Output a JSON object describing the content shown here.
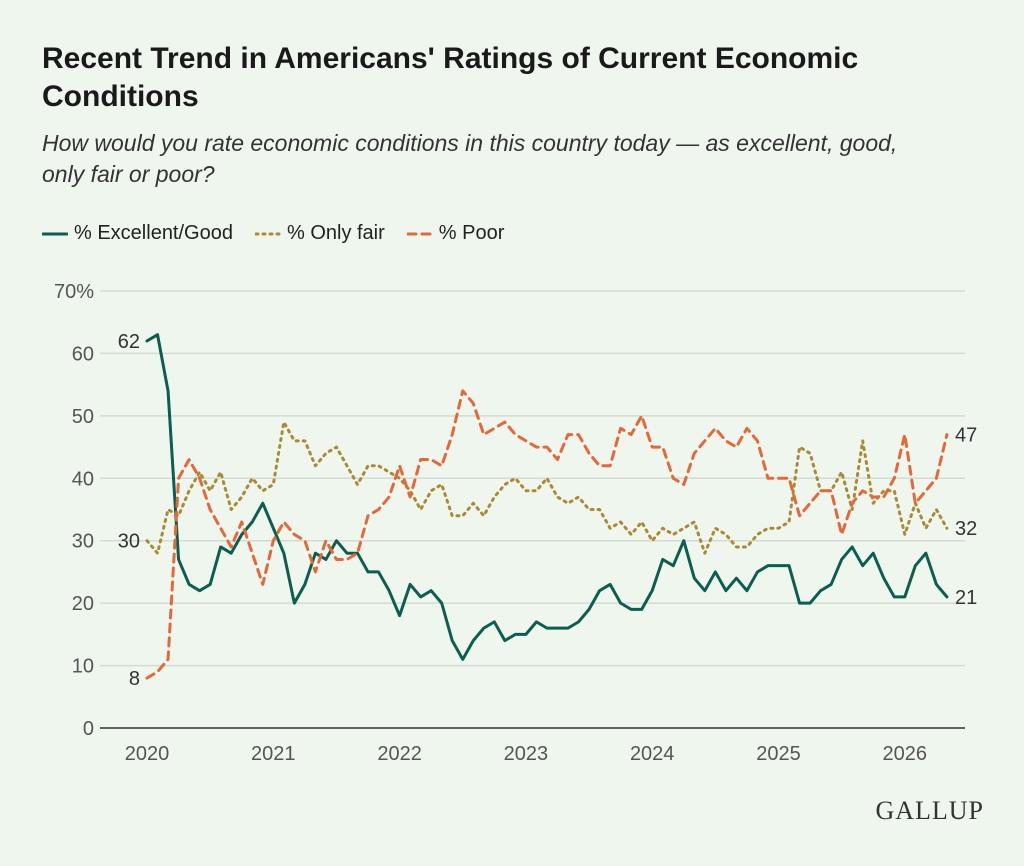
{
  "title": "Recent Trend in Americans' Ratings of Current Economic Conditions",
  "subtitle": "How would you rate economic conditions in this country today — as excellent, good, only fair or poor?",
  "logo": "GALLUP",
  "chart_data": {
    "type": "line",
    "title": "Recent Trend in Americans' Ratings of Current Economic Conditions",
    "xlabel": "",
    "ylabel": "",
    "ylim": [
      0,
      70
    ],
    "yticks": [
      0,
      10,
      20,
      30,
      40,
      50,
      60,
      70
    ],
    "ytick_labels": [
      "0",
      "10",
      "20",
      "30",
      "40",
      "50",
      "60",
      "70%"
    ],
    "xticks": [
      "2020",
      "2021",
      "2022",
      "2023",
      "2024",
      "2025",
      "2026"
    ],
    "grid": "horizontal",
    "legend": "top-left",
    "x": [
      "2020-01",
      "2020-02",
      "2020-03",
      "2020-04",
      "2020-05",
      "2020-06",
      "2020-07",
      "2020-08",
      "2020-09",
      "2020-10",
      "2020-11",
      "2020-12",
      "2021-01",
      "2021-02",
      "2021-03",
      "2021-04",
      "2021-05",
      "2021-06",
      "2021-07",
      "2021-08",
      "2021-09",
      "2021-10",
      "2021-11",
      "2021-12",
      "2022-01",
      "2022-02",
      "2022-03",
      "2022-04",
      "2022-05",
      "2022-06",
      "2022-07",
      "2022-08",
      "2022-09",
      "2022-10",
      "2022-11",
      "2022-12",
      "2023-01",
      "2023-02",
      "2023-03",
      "2023-04",
      "2023-05",
      "2023-06",
      "2023-07",
      "2023-08",
      "2023-09",
      "2023-10",
      "2023-11",
      "2023-12",
      "2024-01",
      "2024-02",
      "2024-03",
      "2024-04",
      "2024-05",
      "2024-06",
      "2024-07",
      "2024-08",
      "2024-09",
      "2024-10",
      "2024-11",
      "2024-12",
      "2025-01",
      "2025-02",
      "2025-03",
      "2025-04",
      "2025-05",
      "2025-06",
      "2025-07",
      "2025-08",
      "2025-09",
      "2025-10",
      "2025-11",
      "2025-12",
      "2026-01",
      "2026-02",
      "2026-03",
      "2026-04",
      "2026-05"
    ],
    "series": [
      {
        "name": "% Excellent/Good",
        "color": "#0b5e50",
        "style": "solid",
        "start_label": "62",
        "end_label": "21",
        "values": [
          62,
          63,
          54,
          27,
          23,
          22,
          23,
          29,
          28,
          31,
          33,
          36,
          32,
          28,
          20,
          23,
          28,
          27,
          30,
          28,
          28,
          25,
          25,
          22,
          18,
          23,
          21,
          22,
          20,
          14,
          11,
          14,
          16,
          17,
          14,
          15,
          15,
          17,
          16,
          16,
          16,
          17,
          19,
          22,
          23,
          20,
          19,
          19,
          22,
          27,
          26,
          30,
          24,
          22,
          25,
          22,
          24,
          22,
          25,
          26,
          26,
          26,
          20,
          20,
          22,
          23,
          27,
          29,
          26,
          28,
          24,
          21,
          21,
          26,
          28,
          23,
          21
        ]
      },
      {
        "name": "% Only fair",
        "color": "#a98b35",
        "style": "dotted",
        "start_label": "30",
        "end_label": "32",
        "values": [
          30,
          28,
          35,
          34,
          38,
          41,
          38,
          41,
          35,
          37,
          40,
          38,
          39,
          49,
          46,
          46,
          42,
          44,
          45,
          42,
          39,
          42,
          42,
          41,
          40,
          38,
          35,
          38,
          39,
          34,
          34,
          36,
          34,
          37,
          39,
          40,
          38,
          38,
          40,
          37,
          36,
          37,
          35,
          35,
          32,
          33,
          31,
          33,
          30,
          32,
          31,
          32,
          33,
          28,
          32,
          31,
          29,
          29,
          31,
          32,
          32,
          33,
          45,
          44,
          38,
          38,
          41,
          35,
          46,
          36,
          38,
          38,
          31,
          36,
          32,
          35,
          32
        ]
      },
      {
        "name": "% Poor",
        "color": "#e4693a",
        "style": "dashed",
        "start_label": "8",
        "end_label": "47",
        "values": [
          8,
          9,
          11,
          40,
          43,
          40,
          35,
          32,
          29,
          33,
          28,
          23,
          30,
          33,
          31,
          30,
          25,
          30,
          27,
          27,
          28,
          34,
          35,
          37,
          42,
          37,
          43,
          43,
          42,
          47,
          54,
          52,
          47,
          48,
          49,
          47,
          46,
          45,
          45,
          43,
          47,
          47,
          44,
          42,
          42,
          48,
          47,
          50,
          45,
          45,
          40,
          39,
          44,
          46,
          48,
          46,
          45,
          48,
          46,
          40,
          40,
          40,
          34,
          36,
          38,
          38,
          31,
          36,
          38,
          37,
          37,
          40,
          47,
          36,
          38,
          40,
          47
        ]
      }
    ]
  }
}
